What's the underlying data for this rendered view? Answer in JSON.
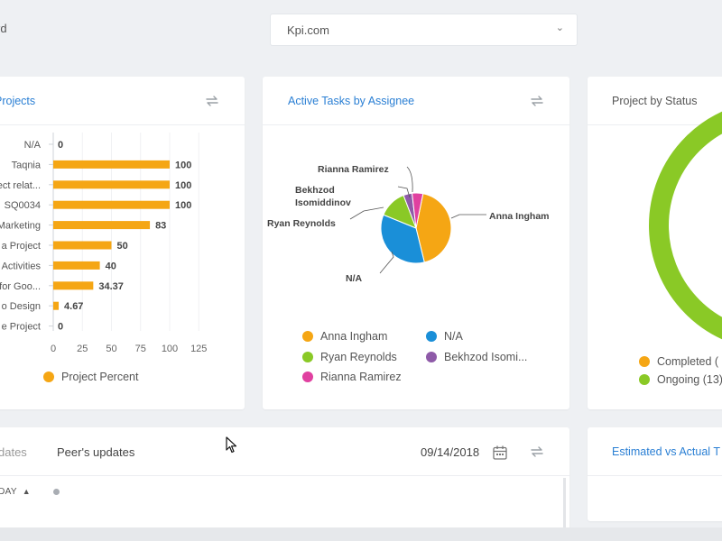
{
  "header": {
    "title_fragment": "rd",
    "workspace_select": "Kpi.com"
  },
  "projects_card": {
    "title": "Projects",
    "legend": "Project Percent",
    "chart_data": {
      "type": "bar",
      "orientation": "horizontal",
      "categories": [
        "N/A",
        "Taqnia",
        "ect relat...",
        "SQ0034",
        "Marketing",
        "a Project",
        "Activities",
        "for Goo...",
        "o Design",
        "e Project"
      ],
      "series": [
        {
          "name": "Project Percent",
          "values": [
            0,
            100,
            100,
            100,
            83,
            50,
            40,
            34.37,
            4.67,
            0
          ]
        }
      ],
      "value_labels": [
        "0",
        "100",
        "100",
        "100",
        "83",
        "50",
        "40",
        "34.37",
        "4.67",
        "0"
      ],
      "xticks": [
        "0",
        "25",
        "50",
        "75",
        "100",
        "125"
      ],
      "xlim": [
        0,
        125
      ],
      "bar_color": "#f5a614"
    }
  },
  "tasks_card": {
    "title": "Active Tasks by Assignee",
    "chart_data": {
      "type": "pie",
      "slices": [
        {
          "label": "Anna Ingham",
          "value": 43,
          "color": "#f5a614"
        },
        {
          "label": "N/A",
          "value": 35,
          "color": "#1a8fd8"
        },
        {
          "label": "Ryan Reynolds",
          "value": 13,
          "color": "#8ac926"
        },
        {
          "label": "Bekhzod Isomiddinov",
          "value": 4,
          "color": "#8e5aa8"
        },
        {
          "label": "Rianna Ramirez",
          "value": 5,
          "color": "#e040a0"
        }
      ]
    },
    "callouts": {
      "rianna": "Rianna Ramirez",
      "bekhzod_1": "Bekhzod",
      "bekhzod_2": "Isomiddinov",
      "ryan": "Ryan Reynolds",
      "anna": "Anna Ingham",
      "na": "N/A"
    },
    "legend": [
      "Anna Ingham",
      "N/A",
      "Ryan Reynolds",
      "Bekhzod Isomi...",
      "Rianna Ramirez"
    ]
  },
  "status_card": {
    "title": "Project by Status",
    "chart_data": {
      "type": "pie",
      "style": "donut",
      "slices": [
        {
          "label": "Completed",
          "color": "#f5a614"
        },
        {
          "label": "Ongoing",
          "value": 13,
          "color": "#8ac926"
        }
      ]
    },
    "legend": [
      "Completed (",
      "Ongoing (13)"
    ]
  },
  "updates_card": {
    "tab_my": "dates",
    "tab_peer": "Peer's updates",
    "date": "09/14/2018",
    "today": "ODAY"
  },
  "estimate_card": {
    "title": "Estimated vs Actual T"
  },
  "colors": {
    "accent_blue": "#2a7fd4",
    "orange": "#f5a614",
    "green": "#8ac926"
  }
}
